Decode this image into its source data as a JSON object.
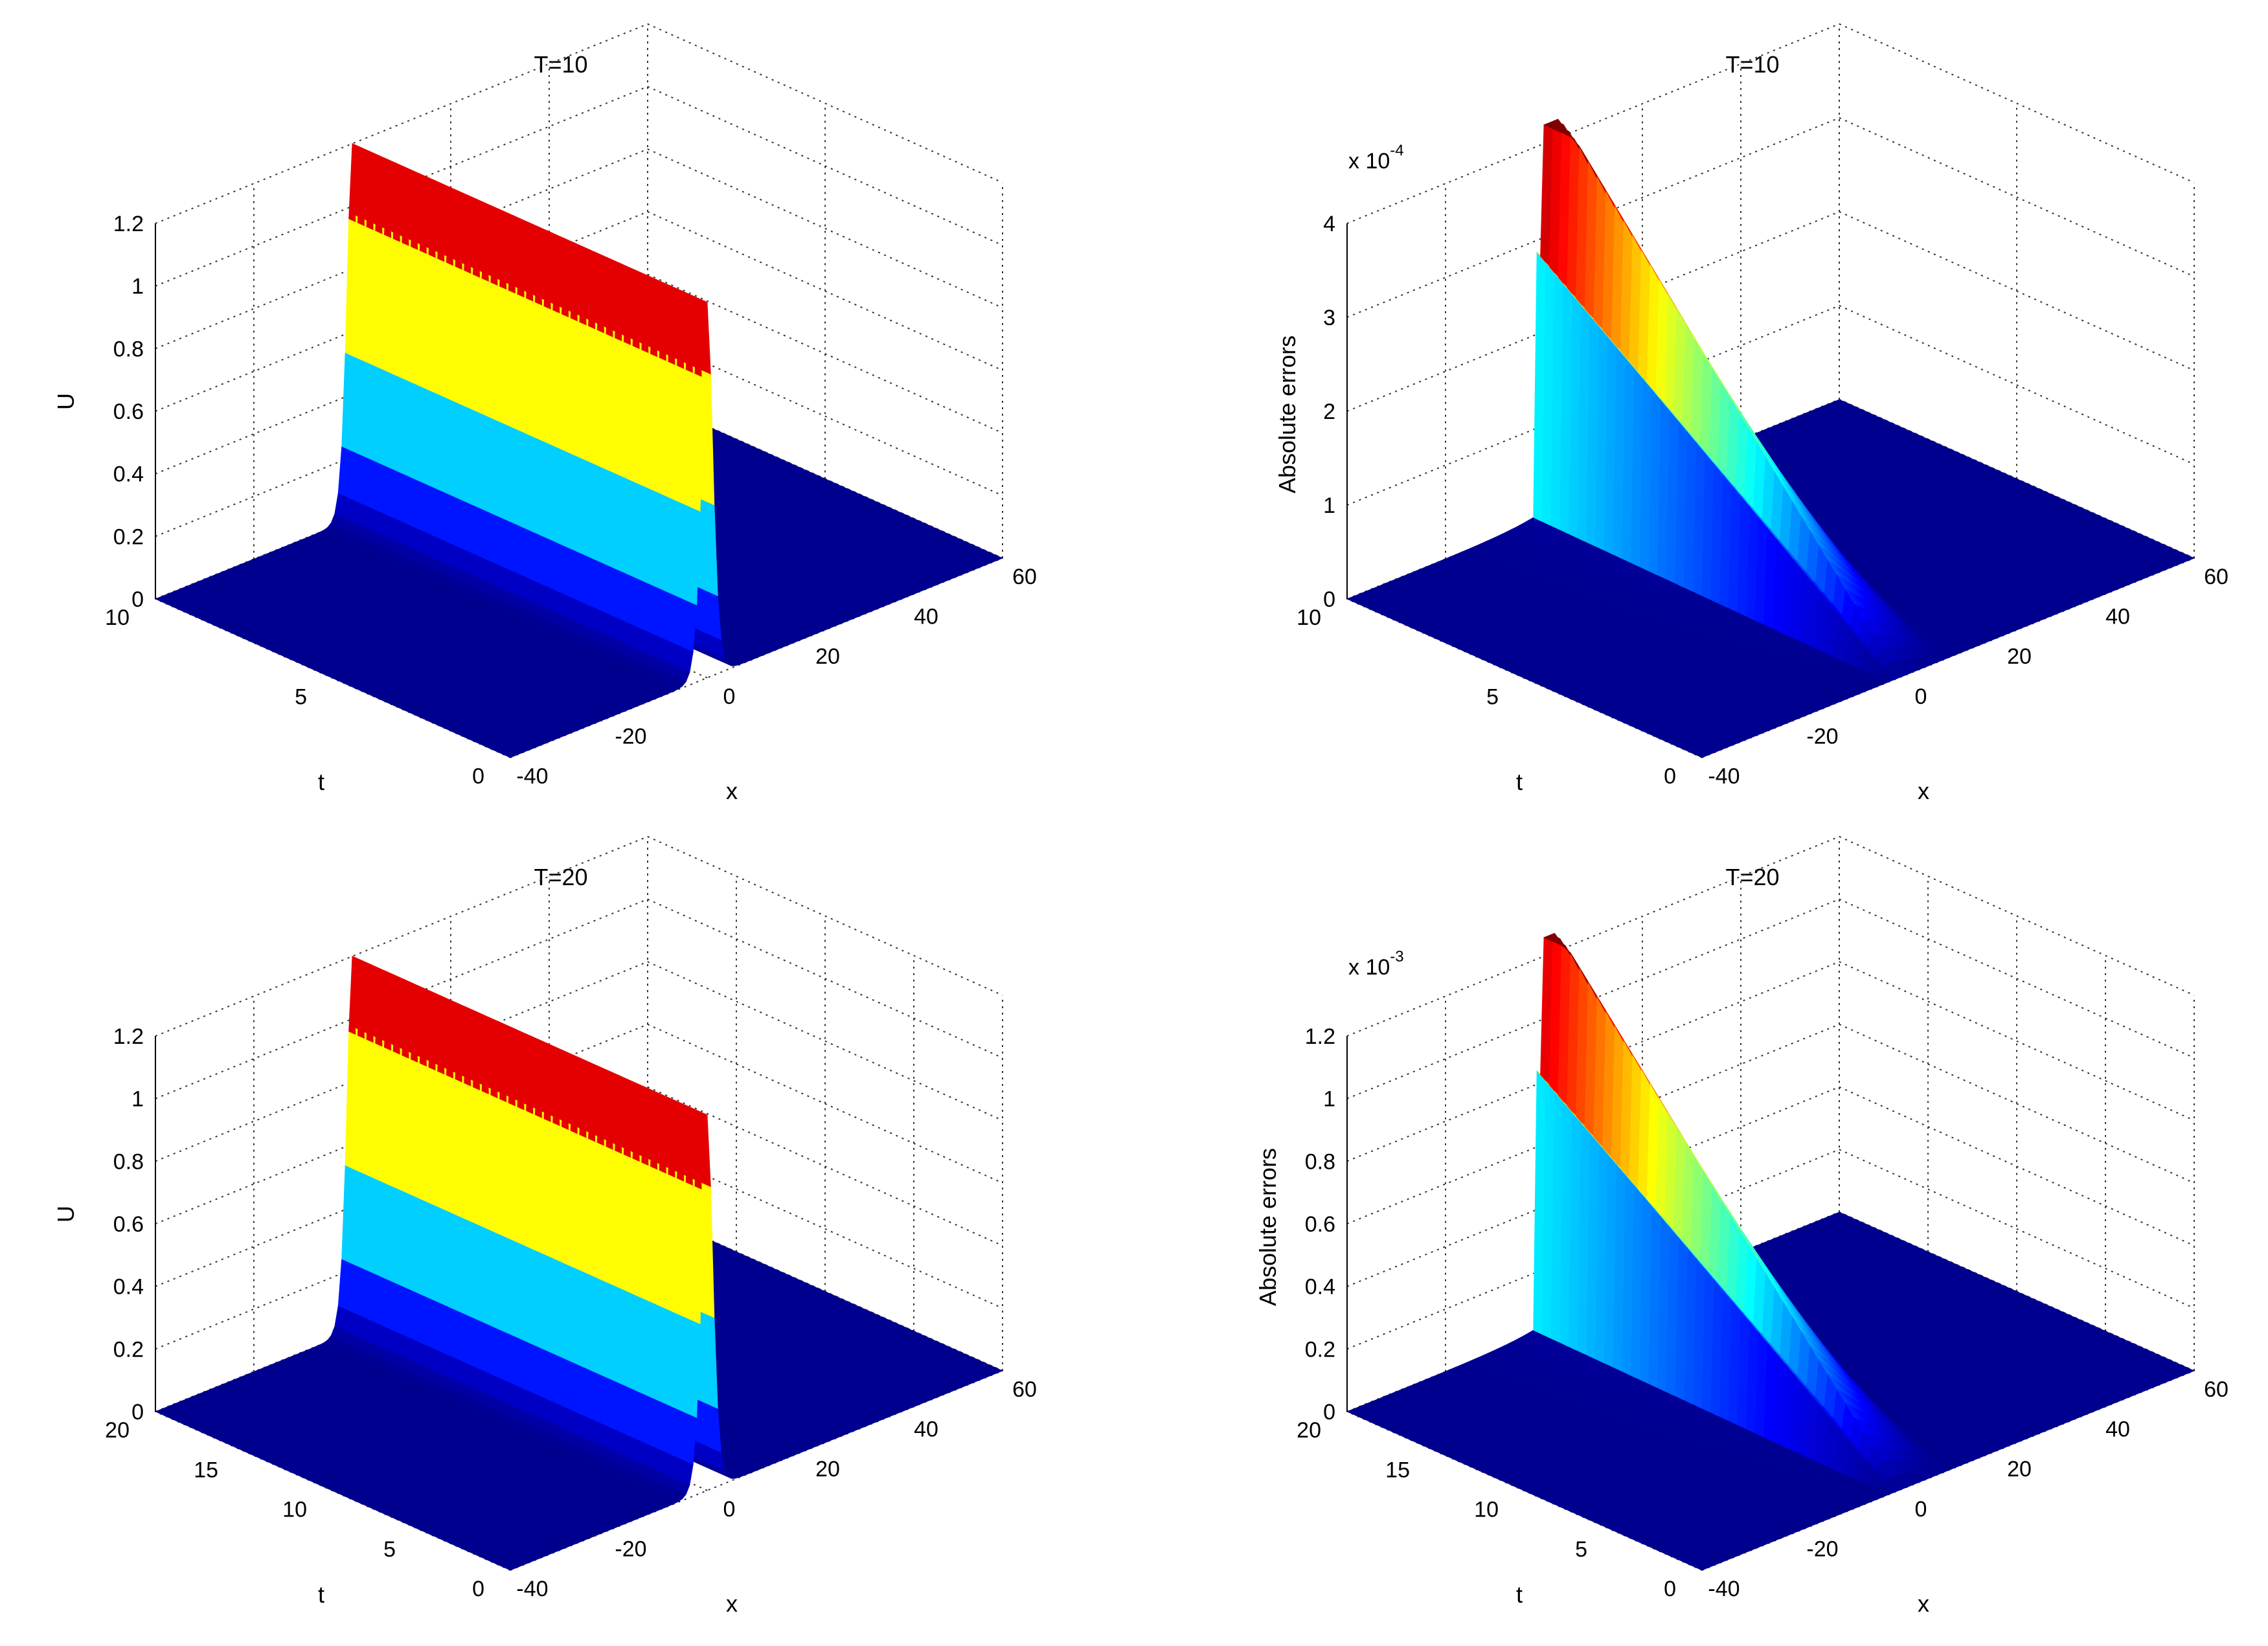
{
  "figure": {
    "colormap": "jet",
    "colormap_stops": [
      "#00007f",
      "#0000ff",
      "#00ffff",
      "#ffff00",
      "#ff0000",
      "#7f0000"
    ]
  },
  "chart_data": [
    {
      "type": "surface",
      "title": "T=10",
      "xlabel": "x",
      "ylabel": "t",
      "zlabel": "U",
      "xlim": [
        -40,
        60
      ],
      "ylim": [
        0,
        10
      ],
      "zlim": [
        0,
        1.2
      ],
      "xticks": [
        "-40",
        "-20",
        "0",
        "20",
        "40",
        "60"
      ],
      "yticks": [
        "0",
        "5",
        "10"
      ],
      "zticks": [
        "0",
        "0.2",
        "0.4",
        "0.6",
        "0.8",
        "1",
        "1.2"
      ],
      "exponent": "",
      "grid": true,
      "surface": {
        "kind": "soliton",
        "amplitude": 1.2,
        "center_x_at_t0": 0,
        "center_x_at_tmax": 0,
        "width": 1.5
      }
    },
    {
      "type": "surface",
      "title": "T=10",
      "xlabel": "x",
      "ylabel": "t",
      "zlabel": "Absolute errors",
      "xlim": [
        -40,
        60
      ],
      "ylim": [
        0,
        10
      ],
      "zlim": [
        0,
        4
      ],
      "xticks": [
        "-40",
        "-20",
        "0",
        "20",
        "40",
        "60"
      ],
      "yticks": [
        "0",
        "5",
        "10"
      ],
      "zticks": [
        "0",
        "1",
        "2",
        "3",
        "4"
      ],
      "exponent": "x 10",
      "exponent_power": "-4",
      "grid": true,
      "surface": {
        "kind": "error",
        "peak": 4.6,
        "peak_t": 10,
        "peak_x": 0,
        "spread": 25
      }
    },
    {
      "type": "surface",
      "title": "T=20",
      "xlabel": "x",
      "ylabel": "t",
      "zlabel": "U",
      "xlim": [
        -40,
        60
      ],
      "ylim": [
        0,
        20
      ],
      "zlim": [
        0,
        1.2
      ],
      "xticks": [
        "-40",
        "-20",
        "0",
        "20",
        "40",
        "60"
      ],
      "yticks": [
        "0",
        "5",
        "10",
        "15",
        "20"
      ],
      "zticks": [
        "0",
        "0.2",
        "0.4",
        "0.6",
        "0.8",
        "1",
        "1.2"
      ],
      "exponent": "",
      "grid": true,
      "surface": {
        "kind": "soliton",
        "amplitude": 1.2,
        "center_x_at_t0": 0,
        "center_x_at_tmax": 0,
        "width": 1.5
      }
    },
    {
      "type": "surface",
      "title": "T=20",
      "xlabel": "x",
      "ylabel": "t",
      "zlabel": "Absolute errors",
      "xlim": [
        -40,
        60
      ],
      "ylim": [
        0,
        20
      ],
      "zlim": [
        0,
        1.2
      ],
      "xticks": [
        "-40",
        "-20",
        "0",
        "20",
        "40",
        "60"
      ],
      "yticks": [
        "0",
        "5",
        "10",
        "15",
        "20"
      ],
      "zticks": [
        "0",
        "0.2",
        "0.4",
        "0.6",
        "0.8",
        "1",
        "1.2"
      ],
      "exponent": "x 10",
      "exponent_power": "-3",
      "grid": true,
      "surface": {
        "kind": "error",
        "peak": 1.35,
        "peak_t": 20,
        "peak_x": 0,
        "spread": 25
      }
    }
  ]
}
